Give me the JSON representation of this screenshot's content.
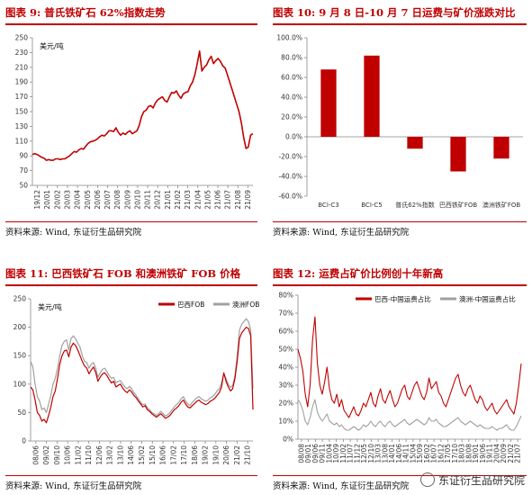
{
  "panels": [
    {
      "title": "图表 9:  普氏铁矿石 62%指数走势",
      "source": "资料来源:  Wind,  东证衍生品研究院"
    },
    {
      "title": "图表 10:  9 月 8 日-10 月 7 日运费与矿价涨跌对比",
      "source": "资料来源:  Wind,  东证衍生品研究院"
    },
    {
      "title": "图表 11:  巴西铁矿石 FOB 和澳洲铁矿 FOB 价格",
      "source": "资料来源:  Wind,  东证衍生品研究院"
    },
    {
      "title": "图表 12:  运费占矿价比例创十年新高",
      "source": "资料来源:  Wind,  东证衍生品研究院"
    }
  ],
  "watermark": "东证衍生品研究院",
  "chart_data": [
    {
      "type": "line",
      "ylabel": "美元/吨",
      "ylim": [
        50,
        250
      ],
      "yticks": [
        50,
        70,
        90,
        110,
        130,
        150,
        170,
        190,
        210,
        230,
        250
      ],
      "xticks": [
        "19/12",
        "20/01",
        "20/02",
        "20/03",
        "20/04",
        "20/05",
        "20/06",
        "20/07",
        "20/08",
        "20/09",
        "20/10",
        "20/11",
        "20/12",
        "21/01",
        "21/02",
        "21/03",
        "21/04",
        "21/05",
        "21/06",
        "21/07",
        "21/08",
        "21/09"
      ],
      "color": "#c00000",
      "series": [
        {
          "values": [
            92,
            93,
            92,
            90,
            88,
            87,
            84,
            85,
            84,
            84,
            86,
            86,
            85,
            86,
            86,
            88,
            90,
            93,
            96,
            95,
            98,
            100,
            99,
            103,
            107,
            109,
            110,
            111,
            113,
            116,
            118,
            117,
            120,
            124,
            124,
            123,
            128,
            122,
            118,
            121,
            119,
            122,
            124,
            120,
            122,
            124,
            131,
            143,
            150,
            152,
            157,
            158,
            155,
            162,
            166,
            168,
            170,
            165,
            163,
            170,
            176,
            175,
            178,
            172,
            168,
            174,
            176,
            177,
            185,
            190,
            200,
            215,
            232,
            205,
            210,
            213,
            220,
            225,
            215,
            219,
            222,
            218,
            212,
            209,
            200,
            190,
            180,
            170,
            160,
            150,
            135,
            115,
            100,
            102,
            118,
            120
          ]
        }
      ]
    },
    {
      "type": "bar",
      "ylim": [
        -60,
        100
      ],
      "yticks": [
        "-60.0%",
        "-40.0%",
        "-20.0%",
        "0.0%",
        "20.0%",
        "40.0%",
        "60.0%",
        "80.0%",
        "100.0%"
      ],
      "categories": [
        "BCI-C3",
        "BCI-C5",
        "普氏62%指数",
        "巴西铁矿FOB",
        "澳洲铁矿FOB"
      ],
      "values": [
        68,
        82,
        -12,
        -35,
        -22
      ],
      "color": "#c00000"
    },
    {
      "type": "line",
      "ylabel": "美元/吨",
      "ylim": [
        0,
        250
      ],
      "yticks": [
        0,
        50,
        100,
        150,
        200,
        250
      ],
      "xticks": [
        "08/06",
        "09/02",
        "09/10",
        "10/06",
        "11/02",
        "11/10",
        "12/06",
        "13/02",
        "13/10",
        "14/06",
        "15/02",
        "15/10",
        "16/06",
        "17/02",
        "17/10",
        "18/06",
        "19/02",
        "19/10",
        "20/06",
        "21/02",
        "21/10"
      ],
      "series": [
        {
          "name": "巴西FOB",
          "color": "#c00000",
          "values": [
            95,
            90,
            72,
            50,
            45,
            35,
            38,
            32,
            45,
            60,
            78,
            88,
            110,
            135,
            150,
            158,
            160,
            148,
            165,
            172,
            168,
            160,
            150,
            140,
            132,
            128,
            118,
            125,
            130,
            120,
            105,
            112,
            118,
            120,
            115,
            108,
            102,
            105,
            95,
            98,
            100,
            93,
            88,
            85,
            90,
            86,
            80,
            76,
            70,
            65,
            60,
            62,
            55,
            52,
            48,
            45,
            42,
            45,
            48,
            44,
            40,
            42,
            45,
            50,
            55,
            58,
            62,
            68,
            72,
            65,
            60,
            58,
            62,
            66,
            70,
            72,
            68,
            66,
            64,
            66,
            70,
            72,
            75,
            80,
            85,
            95,
            120,
            105,
            95,
            88,
            92,
            110,
            140,
            180,
            190,
            195,
            200,
            198,
            185,
            55
          ]
        },
        {
          "name": "澳洲FOB",
          "color": "#a0a0a0",
          "values": [
            140,
            130,
            100,
            78,
            70,
            55,
            58,
            50,
            65,
            80,
            100,
            110,
            128,
            150,
            168,
            175,
            178,
            160,
            180,
            185,
            180,
            172,
            165,
            150,
            140,
            138,
            128,
            135,
            138,
            128,
            112,
            120,
            126,
            128,
            122,
            115,
            110,
            112,
            102,
            105,
            106,
            100,
            95,
            92,
            96,
            92,
            85,
            80,
            74,
            68,
            64,
            65,
            58,
            55,
            50,
            48,
            45,
            48,
            52,
            48,
            44,
            46,
            50,
            55,
            60,
            64,
            68,
            74,
            78,
            70,
            65,
            62,
            68,
            72,
            76,
            78,
            74,
            72,
            70,
            72,
            76,
            78,
            82,
            88,
            92,
            102,
            118,
            110,
            100,
            94,
            98,
            115,
            150,
            195,
            205,
            210,
            215,
            210,
            195,
            92
          ]
        }
      ]
    },
    {
      "type": "line",
      "ylim": [
        0,
        80
      ],
      "yticks": [
        "0%",
        "10%",
        "20%",
        "30%",
        "40%",
        "50%",
        "60%",
        "70%",
        "80%"
      ],
      "xticks": [
        "08/08",
        "09/01",
        "09/06",
        "09/11",
        "10/04",
        "10/09",
        "11/02",
        "11/07",
        "11/12",
        "12/05",
        "12/10",
        "13/03",
        "13/08",
        "14/01",
        "14/06",
        "14/11",
        "15/04",
        "15/09",
        "16/02",
        "16/07",
        "16/12",
        "17/05",
        "17/10",
        "18/03",
        "18/08",
        "19/01",
        "19/06",
        "19/11",
        "20/04",
        "20/09",
        "21/02",
        "21/07"
      ],
      "series": [
        {
          "name": "巴西-中国运费占比",
          "color": "#c00000",
          "values": [
            50,
            45,
            38,
            25,
            18,
            30,
            55,
            68,
            42,
            30,
            25,
            32,
            40,
            28,
            22,
            20,
            25,
            18,
            22,
            16,
            14,
            12,
            15,
            18,
            14,
            13,
            16,
            20,
            18,
            22,
            26,
            20,
            18,
            24,
            28,
            22,
            20,
            24,
            27,
            22,
            18,
            20,
            24,
            28,
            30,
            24,
            22,
            26,
            30,
            32,
            28,
            24,
            22,
            26,
            34,
            28,
            30,
            32,
            26,
            24,
            20,
            18,
            22,
            26,
            30,
            34,
            36,
            30,
            26,
            24,
            28,
            30,
            26,
            22,
            20,
            24,
            22,
            18,
            16,
            18,
            20,
            16,
            14,
            16,
            18,
            20,
            22,
            18,
            16,
            14,
            20,
            30,
            42
          ]
        },
        {
          "name": "澳洲-中国运费占比",
          "color": "#a0a0a0",
          "values": [
            22,
            20,
            16,
            10,
            8,
            12,
            18,
            22,
            15,
            12,
            10,
            12,
            14,
            10,
            9,
            8,
            9,
            7,
            8,
            6,
            5,
            5,
            6,
            7,
            6,
            5,
            6,
            8,
            7,
            8,
            10,
            8,
            7,
            9,
            10,
            8,
            7,
            9,
            10,
            8,
            7,
            8,
            9,
            10,
            11,
            9,
            8,
            9,
            10,
            11,
            10,
            9,
            8,
            9,
            12,
            10,
            10,
            11,
            9,
            8,
            7,
            7,
            8,
            9,
            10,
            11,
            12,
            10,
            9,
            8,
            9,
            10,
            9,
            8,
            7,
            8,
            7,
            6,
            6,
            6,
            7,
            6,
            5,
            6,
            6,
            7,
            8,
            6,
            5,
            5,
            7,
            10,
            13
          ]
        }
      ]
    }
  ]
}
